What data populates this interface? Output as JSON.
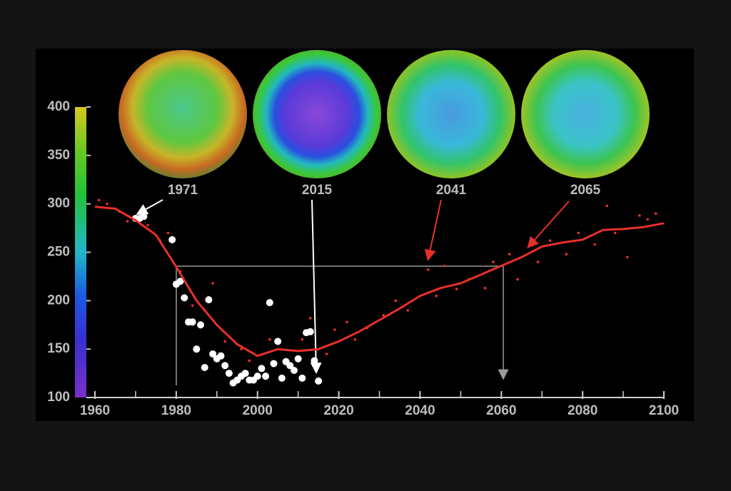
{
  "chart_data": {
    "type": "line",
    "annotations": [
      "1971",
      "2015",
      "2041",
      "2065"
    ],
    "xlim": [
      1960,
      2100
    ],
    "xticks": [
      1960,
      1980,
      2000,
      2020,
      2040,
      2060,
      2080,
      2100
    ],
    "xminorticks": [
      1970,
      1990,
      2010,
      2030,
      2050,
      2070,
      2090
    ],
    "ylim": [
      100,
      400
    ],
    "yticks": [
      100,
      150,
      200,
      250,
      300,
      350,
      400
    ],
    "series": [
      {
        "color": "#e8302a",
        "x": [
          1960,
          1965,
          1970,
          1975,
          1980,
          1985,
          1990,
          1995,
          2000,
          2005,
          2010,
          2015,
          2020,
          2025,
          2030,
          2035,
          2040,
          2045,
          2050,
          2055,
          2060,
          2065,
          2070,
          2075,
          2080,
          2085,
          2090,
          2095,
          2100
        ],
        "values": [
          297,
          295,
          283,
          268,
          235,
          200,
          175,
          155,
          143,
          150,
          148,
          150,
          158,
          168,
          180,
          192,
          205,
          213,
          218,
          227,
          236,
          245,
          256,
          260,
          263,
          273,
          274,
          276,
          280
        ]
      },
      {
        "color": "#e8302a",
        "x": [
          1961,
          1963,
          1966,
          1968,
          1973,
          1976,
          1978,
          1981,
          1984,
          1987,
          1989,
          1992,
          1996,
          1998,
          2003,
          2007,
          2011,
          2013,
          2017,
          2019,
          2022,
          2024,
          2027,
          2031,
          2034,
          2037,
          2042,
          2044,
          2046,
          2049,
          2052,
          2056,
          2058,
          2062,
          2064,
          2067,
          2069,
          2072,
          2076,
          2079,
          2083,
          2086,
          2088,
          2091,
          2094,
          2096,
          2098
        ],
        "values": [
          304,
          300,
          292,
          282,
          278,
          262,
          270,
          230,
          195,
          190,
          218,
          158,
          150,
          138,
          160,
          135,
          160,
          182,
          145,
          170,
          178,
          160,
          172,
          185,
          200,
          190,
          232,
          205,
          236,
          212,
          222,
          213,
          240,
          248,
          222,
          258,
          240,
          262,
          248,
          270,
          258,
          298,
          270,
          245,
          288,
          284,
          290
        ]
      },
      {
        "color": "#ffffff",
        "x": [
          1970,
          1971,
          1972,
          1979,
          1980,
          1981,
          1982,
          1983,
          1984,
          1985,
          1986,
          1987,
          1988,
          1989,
          1990,
          1991,
          1992,
          1993,
          1994,
          1995,
          1996,
          1997,
          1998,
          1999,
          2000,
          2001,
          2002,
          2003,
          2004,
          2005,
          2006,
          2007,
          2008,
          2009,
          2010,
          2011,
          2012,
          2013,
          2014,
          2015
        ],
        "values": [
          285,
          285,
          287,
          263,
          217,
          220,
          203,
          178,
          178,
          150,
          175,
          131,
          201,
          145,
          140,
          143,
          133,
          125,
          115,
          118,
          122,
          125,
          118,
          118,
          122,
          130,
          122,
          198,
          135,
          158,
          120,
          137,
          133,
          128,
          140,
          120,
          167,
          168,
          138,
          117
        ]
      }
    ]
  }
}
